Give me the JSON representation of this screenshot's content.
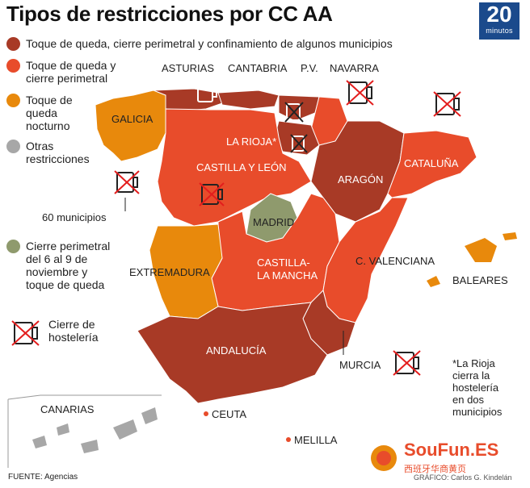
{
  "title": "Tipos de restricciones por CC AA",
  "logo": {
    "number": "20",
    "word": "minutos"
  },
  "legend": [
    {
      "label_lines": [
        "Toque de queda, cierre perimetral y confinamiento de algunos municipios"
      ],
      "color": "#a83a26"
    },
    {
      "label_lines": [
        "Toque de queda y",
        "cierre perimetral"
      ],
      "color": "#e84c2b"
    },
    {
      "label_lines": [
        "Toque de",
        "queda",
        "nocturno"
      ],
      "color": "#e8890c"
    },
    {
      "label_lines": [
        "Otras",
        "restricciones"
      ],
      "color": "#a7a7a7"
    },
    {
      "label_lines": [
        "Cierre perimetral",
        "del 6 al 9 de",
        "noviembre y",
        "toque de queda"
      ],
      "color": "#8f9a6d"
    }
  ],
  "legend_icon": {
    "icon": "beer-mug-crossed-icon",
    "label_lines": [
      "Cierre de",
      "hostelería"
    ]
  },
  "annotations": {
    "galicia_municipios": "60 municipios",
    "rioja_note": [
      "*La Rioja",
      "cierra la",
      "hostelería",
      "en dos",
      "municipios"
    ]
  },
  "regions": {
    "asturias": "ASTURIAS",
    "cantabria": "CANTABRIA",
    "pv": "P.V.",
    "navarra": "NAVARRA",
    "galicia": "GALICIA",
    "la_rioja": "LA RIOJA*",
    "castilla_leon": "CASTILLA Y LEÓN",
    "aragon": "ARAGÓN",
    "cataluna": "CATALUÑA",
    "madrid": "MADRID",
    "extremadura": "EXTREMADURA",
    "castilla_mancha_1": "CASTILLA-",
    "castilla_mancha_2": "LA MANCHA",
    "valenciana": "C. VALENCIANA",
    "baleares": "BALEARES",
    "andalucia": "ANDALUCÍA",
    "murcia": "MURCIA",
    "canarias": "CANARIAS",
    "ceuta": "CEUTA",
    "melilla": "MELILLA"
  },
  "colors": {
    "dark_red": "#a83a26",
    "red": "#e84c2b",
    "orange": "#e8890c",
    "green": "#8f9a6d",
    "gray": "#a7a7a7"
  },
  "footer": {
    "source": "FUENTE: Agencias",
    "credit": "GRÁFICO: Carlos G. Kindelán",
    "watermark": "SouFun.ES",
    "watermark_sub": "西班牙华商黄页"
  }
}
